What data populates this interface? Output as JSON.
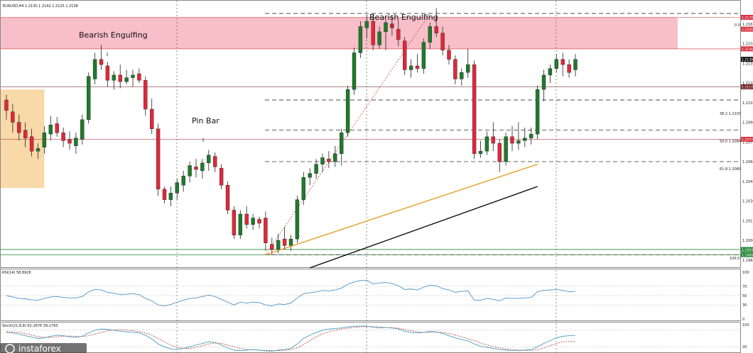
{
  "header": {
    "symbol_line": "EURUSD,H4  1.2130 1.2142 1.2125 1.2138"
  },
  "annotations": {
    "bearish_engulfing_1": "Bearish Engulfing",
    "bearish_engulfing_2": "Bearish Engulfing",
    "pin_bar": "Pin Bar"
  },
  "fib": {
    "level_0": "0.0",
    "level_382": "38.2  1.2107",
    "level_500": "50.0  1.2084",
    "level_618": "61.8  1.2060",
    "level_100": "100.0"
  },
  "price_axis": {
    "tick_labels": [
      "1.2165",
      "1.2150",
      "1.2135",
      "1.2120",
      "1.2105",
      "1.2090",
      "1.2075",
      "1.2060",
      "1.2045",
      "1.2030",
      "1.2015",
      "1.2000",
      "1.1985"
    ]
  },
  "price_tags": {
    "zone_top": "1.2170",
    "zone_upper": "1.2161",
    "zone_lower": "1.2146",
    "current": "1.2138",
    "support_mid": "1.2117",
    "support_low": "1.2077",
    "green_upper": "1.1993",
    "green_lower": "1.1989"
  },
  "rsi": {
    "label": "RSI(14) 58.8926",
    "ticks": [
      "100",
      "70",
      "50",
      "30",
      "0"
    ]
  },
  "stoch": {
    "label": "Stoch(21,8,8) 61.2676 39.1793",
    "ticks": [
      "100",
      "20"
    ]
  },
  "watermark": {
    "text": "instaforex"
  },
  "colors": {
    "bull": "#1f7a2b",
    "bear": "#e0283a",
    "resistance_zone": "#f8bfc8",
    "demand_zone": "#f9d9a8",
    "trend_orange": "#e39a1a",
    "trend_black": "#000000",
    "rsi_line": "#4f93c9",
    "stoch_main": "#4a9fc0",
    "stoch_signal": "#b53a3a"
  },
  "chart_data": {
    "type": "candlestick",
    "symbol": "EURUSD",
    "timeframe": "H4",
    "price_range": [
      1.198,
      1.218
    ],
    "candles": [
      [
        1.2107,
        1.2111,
        1.2092,
        1.2099
      ],
      [
        1.2098,
        1.2104,
        1.2082,
        1.209
      ],
      [
        1.209,
        1.2096,
        1.2076,
        1.2082
      ],
      [
        1.2084,
        1.209,
        1.2071,
        1.2078
      ],
      [
        1.2079,
        1.2085,
        1.2064,
        1.2068
      ],
      [
        1.2068,
        1.2074,
        1.2062,
        1.207
      ],
      [
        1.2071,
        1.2087,
        1.2066,
        1.2082
      ],
      [
        1.2081,
        1.2095,
        1.2076,
        1.2088
      ],
      [
        1.2089,
        1.2094,
        1.2079,
        1.2082
      ],
      [
        1.2082,
        1.2086,
        1.2071,
        1.2076
      ],
      [
        1.2077,
        1.2083,
        1.2069,
        1.2074
      ],
      [
        1.2072,
        1.2082,
        1.2066,
        1.2078
      ],
      [
        1.2077,
        1.2096,
        1.2073,
        1.2092
      ],
      [
        1.2092,
        1.2128,
        1.2089,
        1.2125
      ],
      [
        1.2123,
        1.2143,
        1.2119,
        1.2138
      ],
      [
        1.2138,
        1.2149,
        1.213,
        1.2134
      ],
      [
        1.2133,
        1.2136,
        1.2117,
        1.2122
      ],
      [
        1.2122,
        1.2129,
        1.2115,
        1.2126
      ],
      [
        1.2126,
        1.2134,
        1.2116,
        1.2121
      ],
      [
        1.2121,
        1.213,
        1.2119,
        1.2124
      ],
      [
        1.2124,
        1.213,
        1.2117,
        1.2126
      ],
      [
        1.2127,
        1.2131,
        1.212,
        1.2122
      ],
      [
        1.2122,
        1.2125,
        1.2095,
        1.21
      ],
      [
        1.21,
        1.2108,
        1.2081,
        1.2085
      ],
      [
        1.2085,
        1.2089,
        1.2034,
        1.2039
      ],
      [
        1.2039,
        1.2041,
        1.2028,
        1.2031
      ],
      [
        1.2031,
        1.2041,
        1.2026,
        1.2036
      ],
      [
        1.2036,
        1.2047,
        1.2031,
        1.2044
      ],
      [
        1.2042,
        1.2053,
        1.2037,
        1.2049
      ],
      [
        1.2049,
        1.206,
        1.2044,
        1.2057
      ],
      [
        1.2056,
        1.2062,
        1.2048,
        1.2054
      ],
      [
        1.2053,
        1.2062,
        1.2047,
        1.2059
      ],
      [
        1.2059,
        1.2069,
        1.2053,
        1.2065
      ],
      [
        1.2064,
        1.2067,
        1.2052,
        1.2056
      ],
      [
        1.2055,
        1.2058,
        1.2039,
        1.2042
      ],
      [
        1.2042,
        1.2045,
        1.202,
        1.2023
      ],
      [
        1.2023,
        1.2026,
        1.2001,
        1.2004
      ],
      [
        1.2004,
        1.2023,
        1.2001,
        1.202
      ],
      [
        1.202,
        1.2026,
        1.2009,
        1.2012
      ],
      [
        1.2012,
        1.202,
        1.2008,
        1.2017
      ],
      [
        1.2016,
        1.2018,
        1.2009,
        1.2013
      ],
      [
        1.2017,
        1.2022,
        1.1992,
        1.1998
      ],
      [
        1.1997,
        1.2002,
        1.1989,
        1.1993
      ],
      [
        1.1993,
        1.2005,
        1.199,
        1.2
      ],
      [
        1.2001,
        1.201,
        1.1993,
        1.1996
      ],
      [
        1.1996,
        1.2004,
        1.1992,
        1.2001
      ],
      [
        1.2001,
        1.2034,
        1.1998,
        1.2031
      ],
      [
        1.2031,
        1.2052,
        1.2027,
        1.2048
      ],
      [
        1.2048,
        1.2055,
        1.2042,
        1.2051
      ],
      [
        1.2051,
        1.2062,
        1.2047,
        1.2058
      ],
      [
        1.2058,
        1.2066,
        1.2052,
        1.2063
      ],
      [
        1.2062,
        1.2068,
        1.2055,
        1.206
      ],
      [
        1.206,
        1.2072,
        1.2056,
        1.2066
      ],
      [
        1.2066,
        1.2085,
        1.2057,
        1.2082
      ],
      [
        1.2082,
        1.2118,
        1.2079,
        1.2115
      ],
      [
        1.2115,
        1.2147,
        1.2111,
        1.2143
      ],
      [
        1.2143,
        1.2167,
        1.2139,
        1.2163
      ],
      [
        1.2162,
        1.2172,
        1.2154,
        1.2167
      ],
      [
        1.2167,
        1.2173,
        1.2145,
        1.2149
      ],
      [
        1.2149,
        1.2163,
        1.2146,
        1.2159
      ],
      [
        1.2159,
        1.2168,
        1.2145,
        1.2166
      ],
      [
        1.2165,
        1.2172,
        1.2156,
        1.2162
      ],
      [
        1.2161,
        1.2168,
        1.2148,
        1.2153
      ],
      [
        1.2152,
        1.2155,
        1.2126,
        1.213
      ],
      [
        1.213,
        1.2138,
        1.2124,
        1.2133
      ],
      [
        1.2133,
        1.2142,
        1.2128,
        1.2131
      ],
      [
        1.2131,
        1.2154,
        1.2127,
        1.2151
      ],
      [
        1.2151,
        1.2166,
        1.2146,
        1.2163
      ],
      [
        1.2163,
        1.2177,
        1.2155,
        1.2158
      ],
      [
        1.2158,
        1.2163,
        1.2141,
        1.2145
      ],
      [
        1.2145,
        1.2149,
        1.2134,
        1.2138
      ],
      [
        1.2138,
        1.2141,
        1.2119,
        1.2123
      ],
      [
        1.2123,
        1.2131,
        1.2118,
        1.2128
      ],
      [
        1.2128,
        1.2146,
        1.2124,
        1.2134
      ],
      [
        1.2134,
        1.2137,
        1.2062,
        1.2066
      ],
      [
        1.2066,
        1.2076,
        1.2063,
        1.2068
      ],
      [
        1.2068,
        1.2083,
        1.2065,
        1.2079
      ],
      [
        1.2079,
        1.209,
        1.2068,
        1.2074
      ],
      [
        1.2074,
        1.2077,
        1.2052,
        1.206
      ],
      [
        1.206,
        1.2082,
        1.2057,
        1.2079
      ],
      [
        1.2079,
        1.2087,
        1.2068,
        1.2074
      ],
      [
        1.2074,
        1.209,
        1.2069,
        1.2076
      ],
      [
        1.2076,
        1.2086,
        1.2071,
        1.2078
      ],
      [
        1.2078,
        1.2086,
        1.2073,
        1.2081
      ],
      [
        1.2081,
        1.2118,
        1.2077,
        1.2115
      ],
      [
        1.2115,
        1.213,
        1.2106,
        1.2126
      ],
      [
        1.2126,
        1.2134,
        1.212,
        1.2131
      ],
      [
        1.2131,
        1.2142,
        1.2128,
        1.2138
      ],
      [
        1.2138,
        1.2143,
        1.2125,
        1.2134
      ],
      [
        1.2134,
        1.2138,
        1.2124,
        1.2128
      ],
      [
        1.213,
        1.2142,
        1.2125,
        1.2138
      ]
    ],
    "horizontal_levels": {
      "resistance_zone": [
        1.2146,
        1.217
      ],
      "support_mid": 1.2117,
      "support_low": 1.2077,
      "green_upper": 1.1993,
      "green_lower": 1.1989
    },
    "fibonacci": {
      "high": 1.2173,
      "low": 1.1989,
      "levels": [
        {
          "ratio": 0.0,
          "price": 1.2173
        },
        {
          "ratio": 38.2,
          "price": 1.2107
        },
        {
          "ratio": 50.0,
          "price": 1.2084
        },
        {
          "ratio": 61.8,
          "price": 1.206
        },
        {
          "ratio": 100.0,
          "price": 1.1989
        }
      ]
    },
    "trendlines": {
      "orange": {
        "from": [
          41,
          1.1989
        ],
        "to": [
          84,
          1.2058
        ]
      },
      "black": {
        "from": [
          48,
          1.1979
        ],
        "to": [
          84,
          1.2041
        ]
      }
    },
    "demand_zone": {
      "from_index": 0,
      "to_index": 6,
      "range": [
        1.204,
        1.2115
      ]
    },
    "rsi": {
      "value": 58.8926,
      "range": [
        0,
        100
      ],
      "levels": [
        70,
        50,
        30
      ],
      "values": [
        50,
        47,
        44,
        43,
        41,
        40,
        44,
        47,
        48,
        46,
        45,
        45,
        48,
        58,
        63,
        62,
        57,
        55,
        52,
        53,
        54,
        52,
        44,
        39,
        30,
        28,
        31,
        36,
        40,
        44,
        45,
        48,
        51,
        48,
        42,
        36,
        30,
        36,
        34,
        36,
        35,
        30,
        28,
        32,
        31,
        34,
        45,
        54,
        56,
        58,
        61,
        60,
        62,
        66,
        74,
        79,
        82,
        83,
        75,
        77,
        78,
        76,
        71,
        63,
        64,
        62,
        68,
        72,
        71,
        65,
        62,
        57,
        59,
        60,
        40,
        40,
        44,
        42,
        39,
        45,
        44,
        44,
        45,
        46,
        58,
        61,
        62,
        63,
        61,
        58,
        59
      ]
    },
    "stochastic": {
      "main": 61.2676,
      "signal": 39.1793,
      "range": [
        0,
        100
      ],
      "levels": [
        80,
        20
      ],
      "main_values": [
        72,
        70,
        66,
        60,
        55,
        50,
        52,
        58,
        62,
        60,
        56,
        54,
        58,
        70,
        80,
        84,
        83,
        80,
        76,
        74,
        72,
        70,
        62,
        48,
        30,
        20,
        12,
        10,
        14,
        20,
        26,
        32,
        38,
        36,
        26,
        16,
        8,
        6,
        8,
        10,
        8,
        5,
        4,
        8,
        10,
        14,
        30,
        50,
        62,
        72,
        80,
        84,
        86,
        88,
        92,
        94,
        95,
        95,
        90,
        88,
        90,
        88,
        84,
        76,
        72,
        70,
        72,
        76,
        74,
        68,
        60,
        52,
        46,
        42,
        30,
        22,
        18,
        14,
        10,
        8,
        6,
        6,
        8,
        10,
        20,
        32,
        42,
        52,
        58,
        60,
        61
      ],
      "signal_values": [
        74,
        74,
        72,
        68,
        62,
        57,
        54,
        54,
        56,
        58,
        59,
        58,
        57,
        60,
        66,
        72,
        78,
        81,
        82,
        80,
        78,
        75,
        70,
        62,
        50,
        38,
        26,
        18,
        14,
        14,
        18,
        24,
        30,
        34,
        32,
        26,
        20,
        14,
        10,
        9,
        8,
        7,
        6,
        6,
        7,
        10,
        16,
        28,
        42,
        56,
        66,
        74,
        80,
        84,
        87,
        90,
        92,
        93,
        93,
        92,
        90,
        89,
        87,
        83,
        78,
        74,
        72,
        72,
        73,
        72,
        68,
        62,
        56,
        50,
        42,
        34,
        26,
        20,
        16,
        12,
        10,
        8,
        7,
        7,
        10,
        16,
        24,
        32,
        38,
        39,
        39
      ]
    }
  }
}
